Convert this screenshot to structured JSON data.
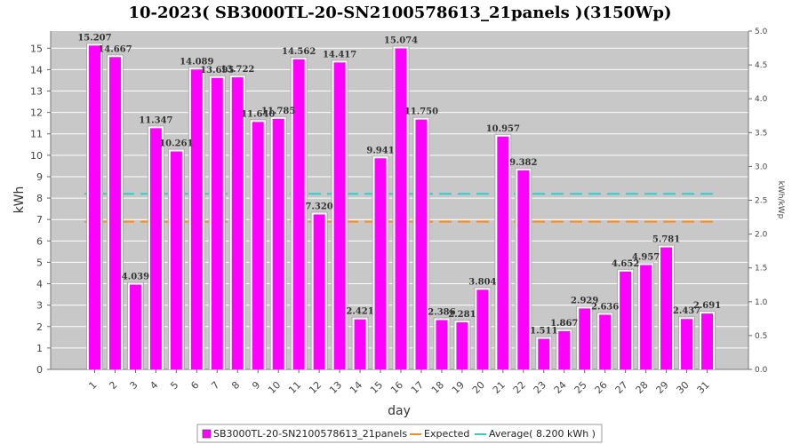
{
  "chart_data": {
    "type": "bar",
    "title": "10-2023( SB3000TL-20-SN2100578613_21panels )(3150Wp)",
    "xlabel": "day",
    "ylabel": "kWh",
    "ylabel_right": "kWh/kWp",
    "ylim": [
      0,
      15.8
    ],
    "ylim_right": [
      0,
      5.0
    ],
    "categories": [
      "1",
      "2",
      "3",
      "4",
      "5",
      "6",
      "7",
      "8",
      "9",
      "10",
      "11",
      "12",
      "13",
      "14",
      "15",
      "16",
      "17",
      "18",
      "19",
      "20",
      "21",
      "22",
      "23",
      "24",
      "25",
      "26",
      "27",
      "28",
      "29",
      "30",
      "31"
    ],
    "series": [
      {
        "name": "SB3000TL-20-SN2100578613_21panels",
        "color": "#ff00ff",
        "values": [
          15.207,
          14.667,
          4.039,
          11.347,
          10.261,
          14.089,
          13.695,
          13.722,
          11.64,
          11.785,
          14.562,
          7.32,
          14.417,
          2.421,
          9.941,
          15.074,
          11.75,
          2.386,
          2.281,
          3.804,
          10.957,
          9.382,
          1.511,
          1.867,
          2.929,
          2.636,
          4.652,
          4.957,
          5.781,
          2.437,
          2.691
        ],
        "labels": [
          "15.207",
          "14.667",
          "4.039",
          "11.347",
          "10.261",
          "14.089",
          "13.695",
          "13.722",
          "11.640",
          "11.785",
          "14.562",
          "7.320",
          "14.417",
          "2.421",
          "9.941",
          "15.074",
          "11.750",
          "2.386",
          "2.281",
          "3.804",
          "10.957",
          "9.382",
          "1.511",
          "1.867",
          "2.929",
          "2.636",
          "4.652",
          "4.957",
          "5.781",
          "2.437",
          "2.691"
        ]
      }
    ],
    "lines": [
      {
        "name": "Expected",
        "color": "#ff8c1a",
        "value": 6.9
      },
      {
        "name": "Average( 8.200 kWh )",
        "color": "#33cccc",
        "value": 8.2
      }
    ],
    "yticks": [
      "0",
      "1",
      "2",
      "3",
      "4",
      "5",
      "6",
      "7",
      "8",
      "9",
      "10",
      "11",
      "12",
      "13",
      "14",
      "15"
    ],
    "yticks_right": [
      "0.0",
      "0.5",
      "1.0",
      "1.5",
      "2.0",
      "2.5",
      "3.0",
      "3.5",
      "4.0",
      "4.5",
      "5.0"
    ],
    "legend": [
      "SB3000TL-20-SN2100578613_21panels",
      "Expected",
      "Average( 8.200 kWh )"
    ],
    "legend_position": "bottom",
    "grid": true,
    "plot_background": "#c8c8c8"
  }
}
